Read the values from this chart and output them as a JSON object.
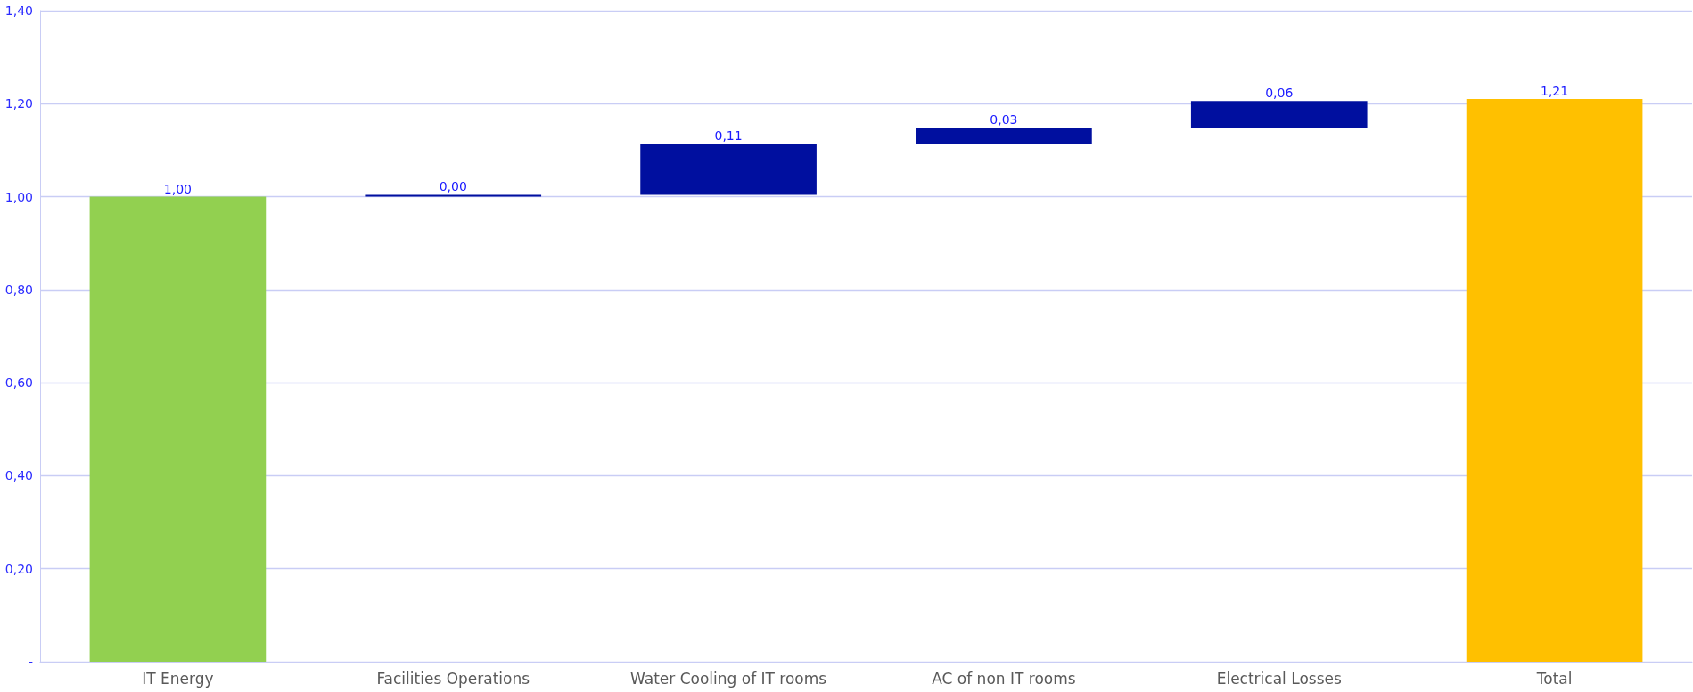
{
  "chart_data": {
    "type": "bar",
    "categories": [
      "IT Energy",
      "Facilities Operations",
      "Water Cooling of IT rooms",
      "AC of non IT rooms",
      "Electrical Losses",
      "Total"
    ],
    "values": [
      1.0,
      0.004,
      0.11,
      0.034,
      0.058,
      1.21
    ],
    "base": [
      0,
      1.0,
      1.004,
      1.114,
      1.148,
      0
    ],
    "colors": [
      "#92d050",
      "#000f9f",
      "#000f9f",
      "#000f9f",
      "#000f9f",
      "#ffc000"
    ],
    "value_labels": [
      "1,00",
      "0,00",
      "0,11",
      "0,03",
      "0,06",
      "1,21"
    ],
    "ylim": [
      0,
      1.4
    ],
    "yticks": [
      {
        "value": 0,
        "label": "-"
      },
      {
        "value": 0.2,
        "label": "0,20"
      },
      {
        "value": 0.4,
        "label": "0,40"
      },
      {
        "value": 0.6,
        "label": "0,60"
      },
      {
        "value": 0.8,
        "label": "0,80"
      },
      {
        "value": 1.0,
        "label": "1,00"
      },
      {
        "value": 1.2,
        "label": "1,20"
      },
      {
        "value": 1.4,
        "label": "1,40"
      }
    ],
    "grid": "y"
  }
}
